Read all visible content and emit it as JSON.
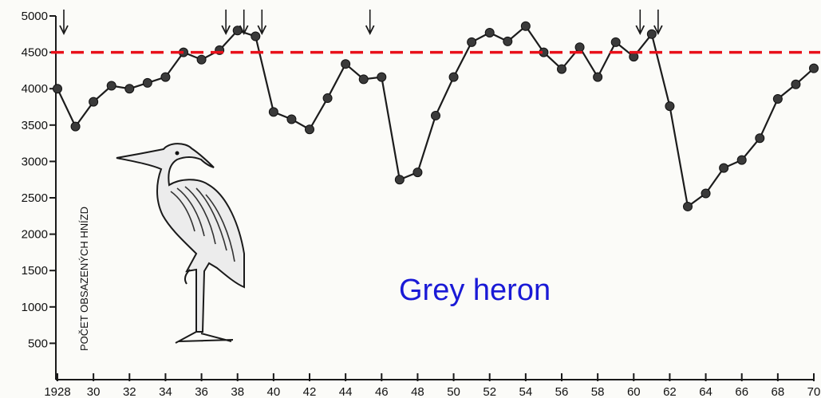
{
  "chart_data": {
    "type": "line",
    "title": "",
    "xlabel": "",
    "ylabel": "POČET OBSAZENÝCH HNÍZD",
    "annotation": "Grey heron",
    "reference_line": {
      "y": 4500,
      "color": "#e8101a",
      "style": "dashed"
    },
    "xlim": [
      1928,
      1970
    ],
    "ylim": [
      0,
      5000
    ],
    "x_tick_labels": [
      "1928",
      "30",
      "32",
      "34",
      "36",
      "38",
      "40",
      "42",
      "44",
      "46",
      "48",
      "50",
      "52",
      "54",
      "56",
      "58",
      "60",
      "62",
      "64",
      "66",
      "68",
      "70"
    ],
    "y_tick_labels": [
      "5000",
      "4500",
      "4000",
      "3500",
      "3000",
      "2500",
      "2000",
      "1500",
      "1000",
      "500"
    ],
    "y_tick_values": [
      5000,
      4500,
      4000,
      3500,
      3000,
      2500,
      2000,
      1500,
      1000,
      500
    ],
    "series": [
      {
        "x": [
          1928,
          1929,
          1930,
          1931,
          1932,
          1933,
          1934,
          1935,
          1936,
          1937,
          1938,
          1939,
          1940,
          1941,
          1942,
          1943,
          1944,
          1945,
          1946,
          1947,
          1948,
          1949,
          1950,
          1951,
          1952,
          1953,
          1954,
          1955,
          1956,
          1957,
          1958,
          1959,
          1960,
          1961,
          1962,
          1963,
          1964,
          1965,
          1966,
          1967,
          1968,
          1969,
          1970
        ],
        "values": [
          4000,
          3480,
          3820,
          4040,
          4000,
          4080,
          4160,
          4500,
          4400,
          4530,
          4800,
          4720,
          3680,
          3580,
          3440,
          3870,
          4340,
          4130,
          4160,
          2750,
          2850,
          3630,
          4160,
          4640,
          4770,
          4650,
          4860,
          4500,
          4270,
          4570,
          4160,
          4640,
          4440,
          4750,
          3760,
          2380,
          2560,
          2910,
          3020,
          3320,
          3860,
          4060,
          4280
        ]
      }
    ],
    "arrows_at": [
      1928,
      1937,
      1938,
      1939,
      1945,
      1960,
      1961
    ],
    "colors": {
      "line": "#1c1c1c",
      "marker": "#3a3a3a",
      "reference": "#e8101a",
      "annotation": "#1a1ad6"
    }
  }
}
